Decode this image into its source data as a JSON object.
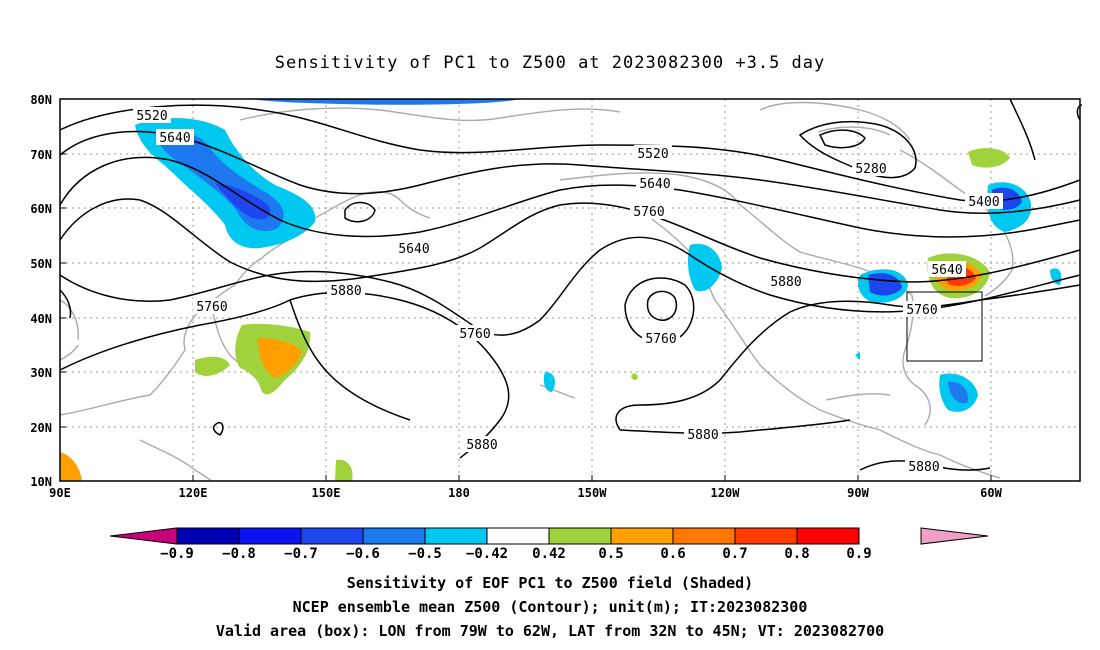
{
  "title": "Sensitivity of PC1 to Z500 at 2023082300 +3.5 day",
  "lat_labels": [
    "80N",
    "70N",
    "60N",
    "50N",
    "40N",
    "30N",
    "20N",
    "10N"
  ],
  "lon_labels": [
    "90E",
    "120E",
    "150E",
    "180",
    "150W",
    "120W",
    "90W",
    "60W"
  ],
  "contour_levels": [
    "5520",
    "5640",
    "5520",
    "5640",
    "5760",
    "5640",
    "5880",
    "5760",
    "5760",
    "5280",
    "5400",
    "5640",
    "5760",
    "5880",
    "5760",
    "5880",
    "5880",
    "5880"
  ],
  "colorbar": {
    "labels": [
      "−0.9",
      "−0.8",
      "−0.7",
      "−0.6",
      "−0.5",
      "−0.42",
      "0.42",
      "0.5",
      "0.6",
      "0.7",
      "0.8",
      "0.9"
    ],
    "colors": [
      "#c8007a",
      "#0000b4",
      "#0a14f0",
      "#1e46f0",
      "#1e78f0",
      "#00c8f0",
      "#ffffff",
      "#a0d23c",
      "#ffa000",
      "#ff7800",
      "#ff3c00",
      "#ff0000",
      "#f0a0c8"
    ]
  },
  "captions": [
    "Sensitivity of EOF PC1 to Z500 field (Shaded)",
    "NCEP ensemble mean Z500 (Contour); unit(m); IT:2023082300",
    "Valid area (box): LON from 79W to 62W, LAT from 32N to 45N; VT: 2023082700"
  ]
}
